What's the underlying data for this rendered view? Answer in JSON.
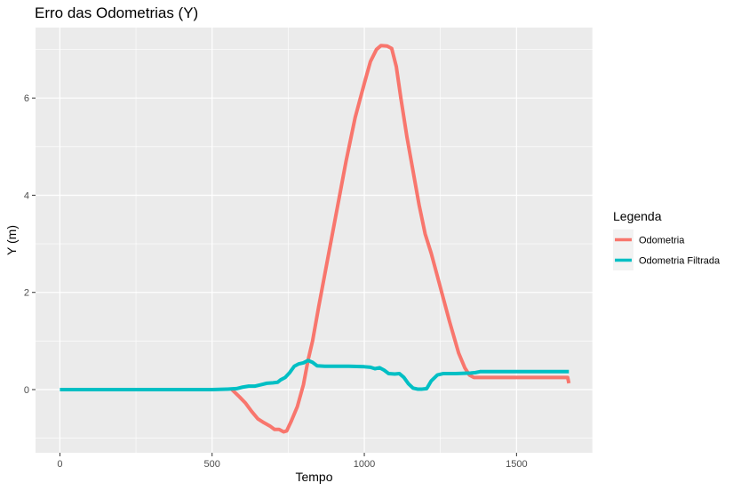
{
  "chart_data": {
    "type": "line",
    "title": "Erro das Odometrias (Y)",
    "xlabel": "Tempo",
    "ylabel": "Y (m)",
    "xlim": [
      -80,
      1750
    ],
    "ylim": [
      -1.3,
      7.45
    ],
    "x_ticks": [
      0,
      500,
      1000,
      1500
    ],
    "y_ticks": [
      0,
      2,
      4,
      6
    ],
    "grid": true,
    "legend": {
      "title": "Legenda",
      "position": "right"
    },
    "series": [
      {
        "name": "Odometria",
        "color": "#f8766d",
        "points": [
          [
            565,
            0
          ],
          [
            590,
            -0.15
          ],
          [
            610,
            -0.28
          ],
          [
            630,
            -0.45
          ],
          [
            650,
            -0.6
          ],
          [
            670,
            -0.68
          ],
          [
            690,
            -0.75
          ],
          [
            705,
            -0.82
          ],
          [
            720,
            -0.82
          ],
          [
            735,
            -0.87
          ],
          [
            745,
            -0.85
          ],
          [
            760,
            -0.65
          ],
          [
            780,
            -0.35
          ],
          [
            800,
            0.1
          ],
          [
            815,
            0.6
          ],
          [
            830,
            1.0
          ],
          [
            850,
            1.7
          ],
          [
            880,
            2.7
          ],
          [
            910,
            3.7
          ],
          [
            940,
            4.7
          ],
          [
            970,
            5.6
          ],
          [
            1000,
            6.3
          ],
          [
            1020,
            6.75
          ],
          [
            1040,
            7.0
          ],
          [
            1055,
            7.08
          ],
          [
            1075,
            7.07
          ],
          [
            1090,
            7.02
          ],
          [
            1105,
            6.65
          ],
          [
            1120,
            6.0
          ],
          [
            1140,
            5.2
          ],
          [
            1160,
            4.5
          ],
          [
            1180,
            3.8
          ],
          [
            1200,
            3.2
          ],
          [
            1220,
            2.8
          ],
          [
            1250,
            2.1
          ],
          [
            1280,
            1.4
          ],
          [
            1310,
            0.75
          ],
          [
            1330,
            0.45
          ],
          [
            1345,
            0.3
          ],
          [
            1360,
            0.25
          ],
          [
            1400,
            0.25
          ],
          [
            1500,
            0.25
          ],
          [
            1600,
            0.25
          ],
          [
            1650,
            0.25
          ],
          [
            1668,
            0.25
          ],
          [
            1672,
            0.13
          ]
        ]
      },
      {
        "name": "Odometria Filtrada",
        "color": "#00bfc4",
        "points": [
          [
            0,
            0
          ],
          [
            100,
            0
          ],
          [
            200,
            0
          ],
          [
            300,
            0
          ],
          [
            400,
            0
          ],
          [
            500,
            0
          ],
          [
            550,
            0.01
          ],
          [
            580,
            0.02
          ],
          [
            600,
            0.05
          ],
          [
            620,
            0.07
          ],
          [
            640,
            0.07
          ],
          [
            660,
            0.1
          ],
          [
            680,
            0.13
          ],
          [
            700,
            0.14
          ],
          [
            715,
            0.15
          ],
          [
            725,
            0.2
          ],
          [
            740,
            0.25
          ],
          [
            755,
            0.35
          ],
          [
            770,
            0.48
          ],
          [
            785,
            0.53
          ],
          [
            800,
            0.55
          ],
          [
            815,
            0.6
          ],
          [
            830,
            0.56
          ],
          [
            845,
            0.49
          ],
          [
            870,
            0.48
          ],
          [
            900,
            0.48
          ],
          [
            950,
            0.48
          ],
          [
            1000,
            0.47
          ],
          [
            1020,
            0.46
          ],
          [
            1035,
            0.43
          ],
          [
            1050,
            0.45
          ],
          [
            1065,
            0.4
          ],
          [
            1080,
            0.33
          ],
          [
            1100,
            0.32
          ],
          [
            1115,
            0.33
          ],
          [
            1130,
            0.25
          ],
          [
            1145,
            0.12
          ],
          [
            1160,
            0.03
          ],
          [
            1175,
            0.01
          ],
          [
            1190,
            0.01
          ],
          [
            1205,
            0.02
          ],
          [
            1220,
            0.18
          ],
          [
            1240,
            0.3
          ],
          [
            1260,
            0.33
          ],
          [
            1300,
            0.33
          ],
          [
            1350,
            0.34
          ],
          [
            1365,
            0.35
          ],
          [
            1380,
            0.37
          ],
          [
            1400,
            0.37
          ],
          [
            1500,
            0.37
          ],
          [
            1600,
            0.37
          ],
          [
            1672,
            0.37
          ]
        ]
      }
    ]
  }
}
